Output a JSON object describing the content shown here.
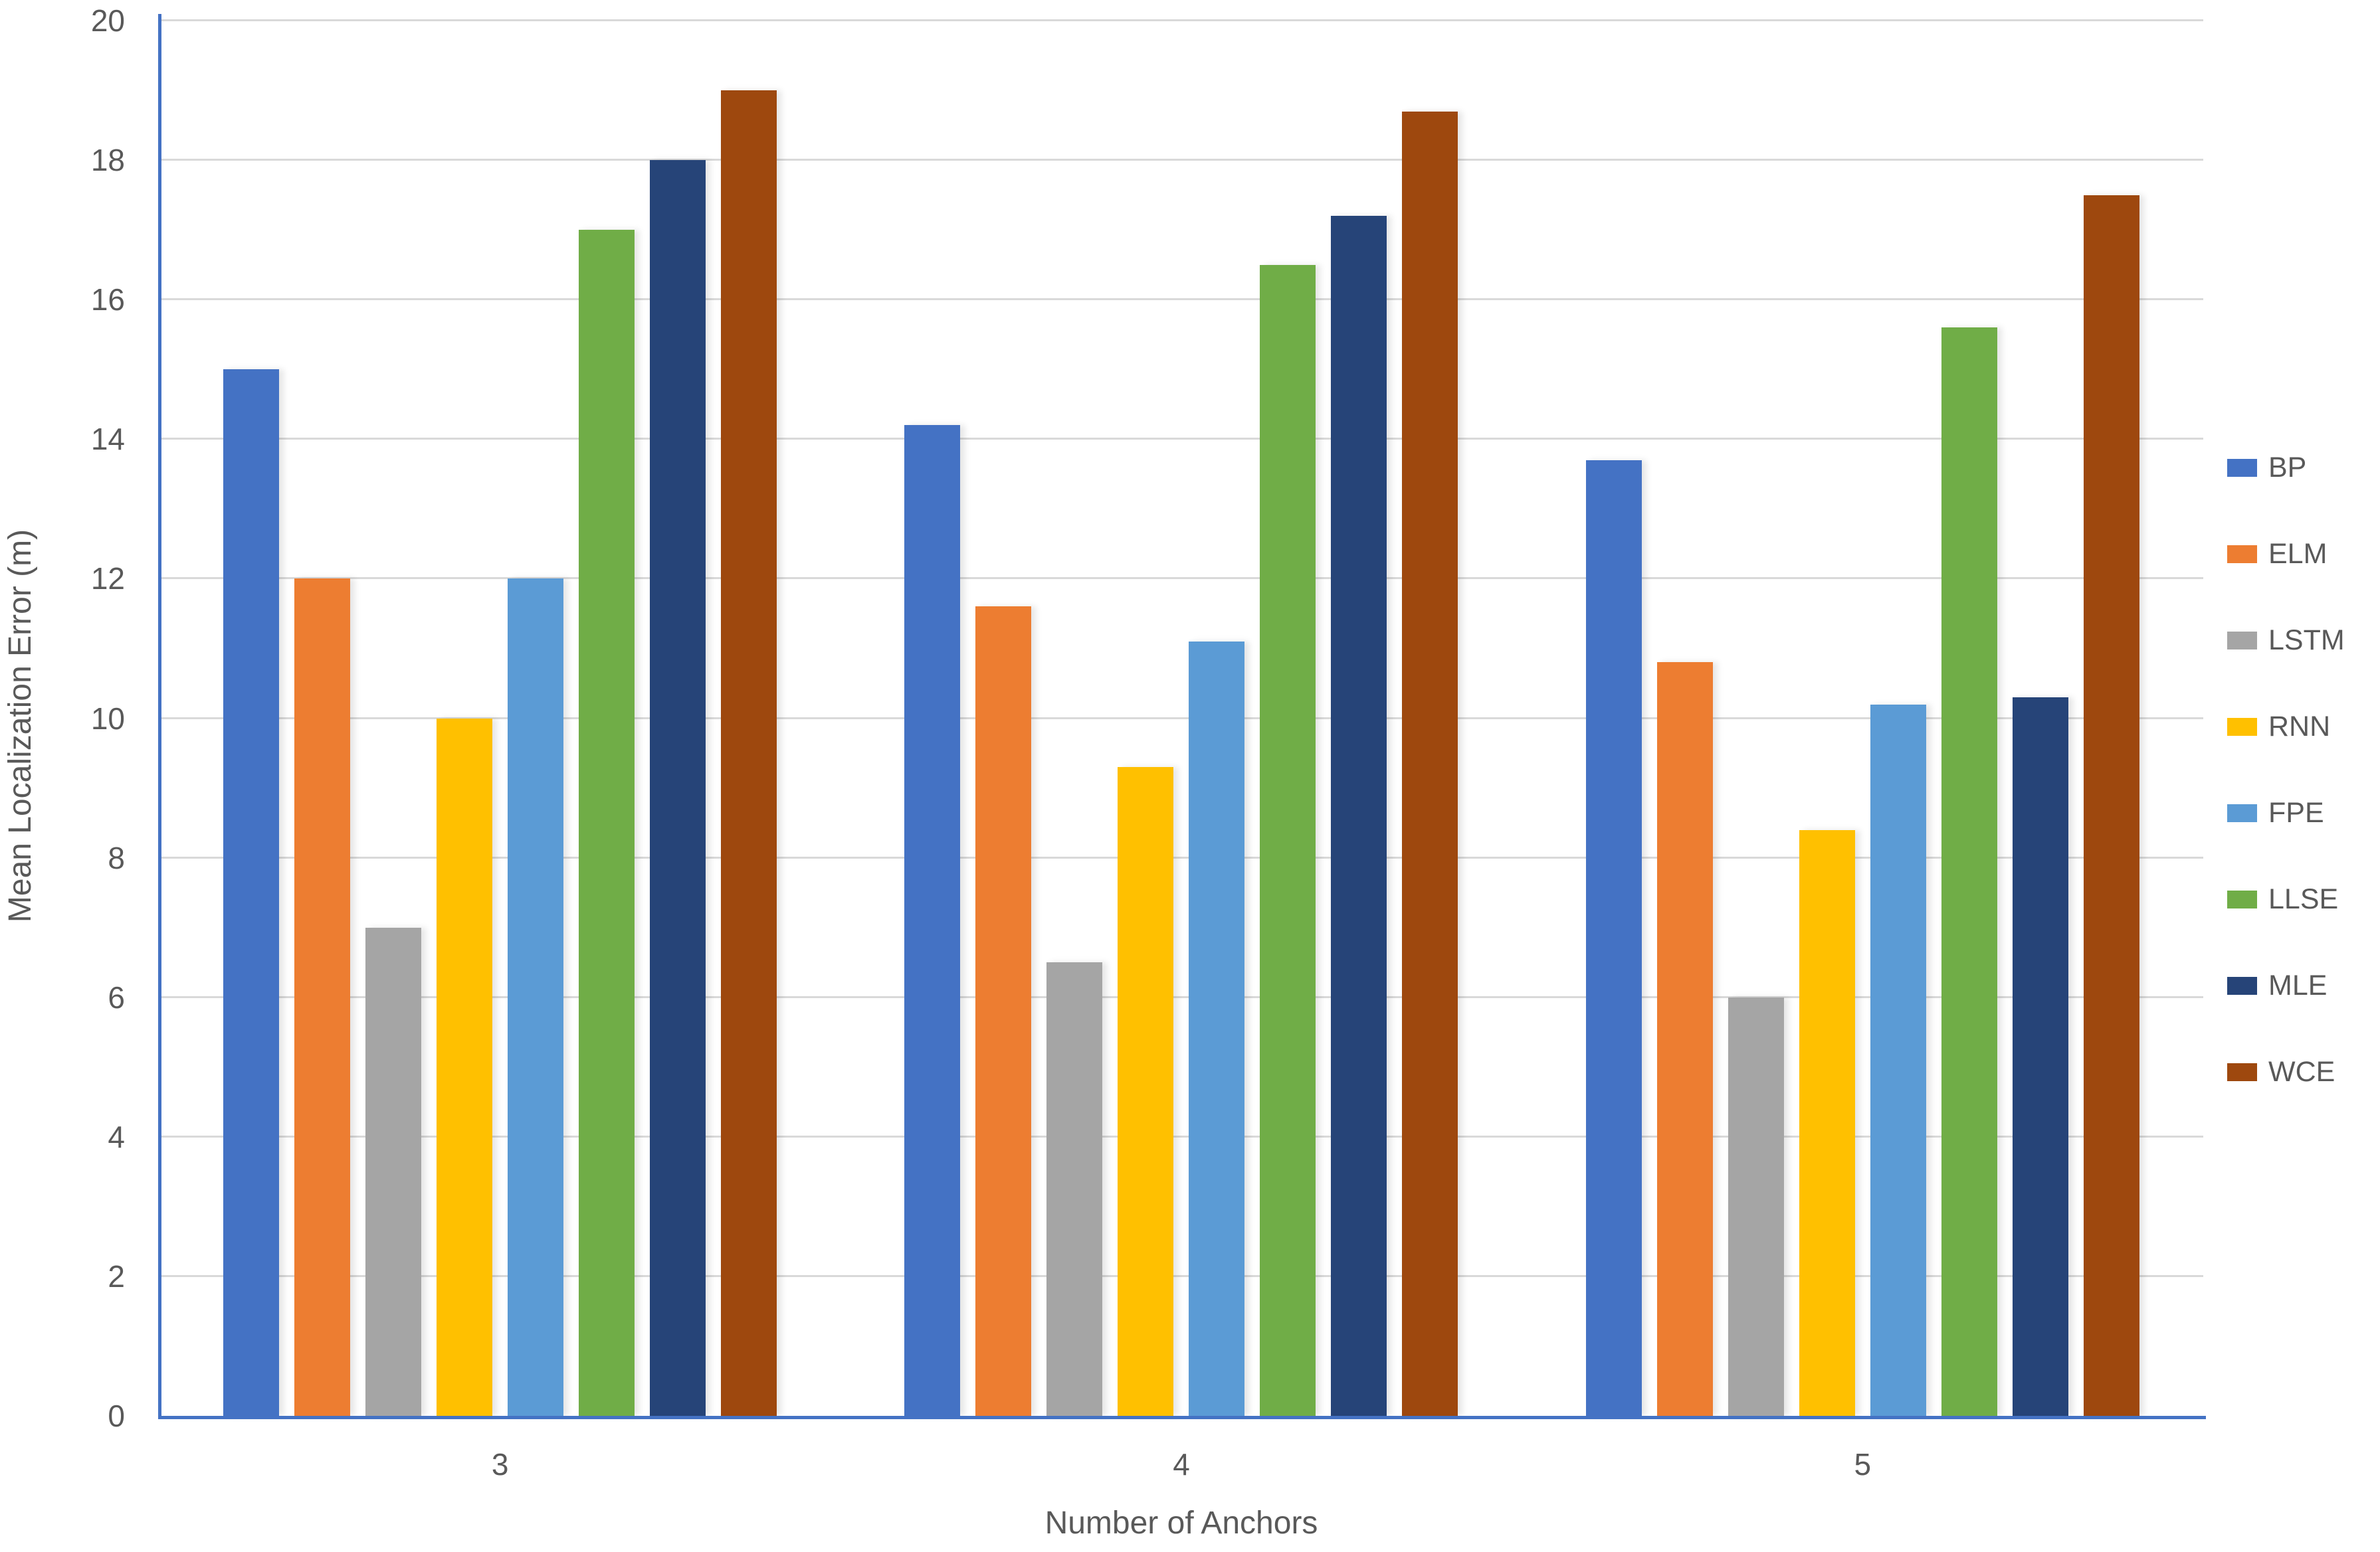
{
  "chart_data": {
    "type": "bar",
    "title": "",
    "xlabel": "Number of Anchors",
    "ylabel": "Mean Localization Error (m)",
    "categories": [
      "3",
      "4",
      "5"
    ],
    "series": [
      {
        "name": "BP",
        "color": "#4472C4",
        "values": [
          15.0,
          14.2,
          13.7
        ]
      },
      {
        "name": "ELM",
        "color": "#ED7D31",
        "values": [
          12.0,
          11.6,
          10.8
        ]
      },
      {
        "name": "LSTM",
        "color": "#A5A5A5",
        "values": [
          7.0,
          6.5,
          6.0
        ]
      },
      {
        "name": "RNN",
        "color": "#FFC000",
        "values": [
          10.0,
          9.3,
          8.4
        ]
      },
      {
        "name": "FPE",
        "color": "#5B9BD5",
        "values": [
          12.0,
          11.1,
          10.2
        ]
      },
      {
        "name": "LLSE",
        "color": "#70AD47",
        "values": [
          17.0,
          16.5,
          15.6
        ]
      },
      {
        "name": "MLE",
        "color": "#264478",
        "values": [
          18.0,
          17.2,
          10.3
        ]
      },
      {
        "name": "WCE",
        "color": "#9E480E",
        "values": [
          19.0,
          18.7,
          17.5
        ]
      }
    ],
    "ylim": [
      0,
      20
    ],
    "y_ticks": [
      0,
      2,
      4,
      6,
      8,
      10,
      12,
      14,
      16,
      18,
      20
    ],
    "grid": "horizontal",
    "legend_position": "right",
    "colors": {
      "axis_line": "#4472C4",
      "gridline": "#D9D9D9",
      "text": "#595959",
      "background": "#FFFFFF"
    }
  }
}
